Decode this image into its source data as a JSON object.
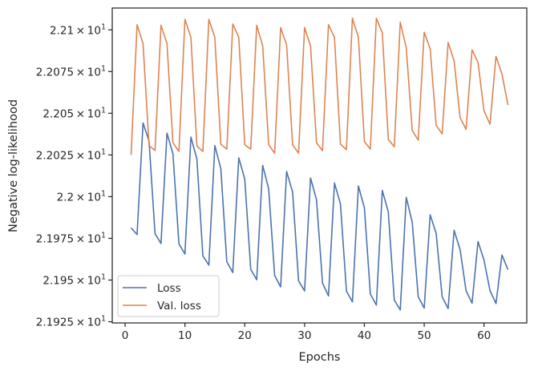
{
  "chart_data": {
    "type": "line",
    "xlabel": "Epochs",
    "ylabel": "Negative log-likelihood",
    "xlim": [
      -2.15,
      67.15
    ],
    "ylim": [
      21.9243,
      22.1131
    ],
    "x_ticks": [
      {
        "value": 0,
        "label": "0"
      },
      {
        "value": 10,
        "label": "10"
      },
      {
        "value": 20,
        "label": "20"
      },
      {
        "value": 30,
        "label": "30"
      },
      {
        "value": 40,
        "label": "40"
      },
      {
        "value": 50,
        "label": "50"
      },
      {
        "value": 60,
        "label": "60"
      }
    ],
    "y_ticks": [
      {
        "value": 21.925,
        "mantissa": "2.1925",
        "times": "×",
        "base": "10",
        "exp": "1"
      },
      {
        "value": 21.95,
        "mantissa": "2.195",
        "times": "×",
        "base": "10",
        "exp": "1"
      },
      {
        "value": 21.975,
        "mantissa": "2.1975",
        "times": "×",
        "base": "10",
        "exp": "1"
      },
      {
        "value": 22.0,
        "mantissa": "2.2",
        "times": "×",
        "base": "10",
        "exp": "1"
      },
      {
        "value": 22.025,
        "mantissa": "2.2025",
        "times": "×",
        "base": "10",
        "exp": "1"
      },
      {
        "value": 22.05,
        "mantissa": "2.205",
        "times": "×",
        "base": "10",
        "exp": "1"
      },
      {
        "value": 22.075,
        "mantissa": "2.2075",
        "times": "×",
        "base": "10",
        "exp": "1"
      },
      {
        "value": 22.1,
        "mantissa": "2.21",
        "times": "×",
        "base": "10",
        "exp": "1"
      }
    ],
    "legend": {
      "placement": "lower-left"
    },
    "series": [
      {
        "name": "Loss",
        "color": "#4c72b0",
        "x": [
          1,
          2,
          3,
          4,
          5,
          6,
          7,
          8,
          9,
          10,
          11,
          12,
          13,
          14,
          15,
          16,
          17,
          18,
          19,
          20,
          21,
          22,
          23,
          24,
          25,
          26,
          27,
          28,
          29,
          30,
          31,
          32,
          33,
          34,
          35,
          36,
          37,
          38,
          39,
          40,
          41,
          42,
          43,
          44,
          45,
          46,
          47,
          48,
          49,
          50,
          51,
          52,
          53,
          54,
          55,
          56,
          57,
          58,
          59,
          60,
          61,
          62,
          63,
          64
        ],
        "values": [
          21.9813,
          21.9773,
          22.0442,
          22.0333,
          21.9779,
          21.9719,
          22.0381,
          22.0256,
          21.9717,
          21.9656,
          22.0357,
          22.0226,
          21.9645,
          21.959,
          22.0306,
          22.0168,
          21.961,
          21.9545,
          22.0233,
          22.0106,
          21.9565,
          21.9502,
          22.0187,
          22.0047,
          21.9527,
          21.9459,
          22.0151,
          22.0028,
          21.9495,
          21.9435,
          22.0112,
          21.9981,
          21.9482,
          21.9405,
          22.0082,
          21.9956,
          21.9434,
          21.9369,
          22.0064,
          21.9934,
          21.9416,
          21.935,
          22.0037,
          21.9909,
          21.938,
          21.9321,
          21.9996,
          21.9847,
          21.94,
          21.9332,
          21.9891,
          21.978,
          21.94,
          21.9329,
          21.9798,
          21.9683,
          21.9436,
          21.9361,
          21.9731,
          21.9619,
          21.9437,
          21.9359,
          21.965,
          21.9563
        ]
      },
      {
        "name": "Val. loss",
        "color": "#dd8452",
        "x": [
          1,
          2,
          3,
          4,
          5,
          6,
          7,
          8,
          9,
          10,
          11,
          12,
          13,
          14,
          15,
          16,
          17,
          18,
          19,
          20,
          21,
          22,
          23,
          24,
          25,
          26,
          27,
          28,
          29,
          30,
          31,
          32,
          33,
          34,
          35,
          36,
          37,
          38,
          39,
          40,
          41,
          42,
          43,
          44,
          45,
          46,
          47,
          48,
          49,
          50,
          51,
          52,
          53,
          54,
          55,
          56,
          57,
          58,
          59,
          60,
          61,
          62,
          63,
          64
        ],
        "values": [
          22.025,
          22.1031,
          22.0917,
          22.0306,
          22.0277,
          22.1028,
          22.0917,
          22.0323,
          22.0271,
          22.1063,
          22.0955,
          22.0304,
          22.0271,
          22.1063,
          22.0955,
          22.0314,
          22.0285,
          22.1035,
          22.0955,
          22.0311,
          22.0285,
          22.1028,
          22.0903,
          22.0311,
          22.0261,
          22.1014,
          22.091,
          22.0311,
          22.0261,
          22.1014,
          22.0903,
          22.0323,
          22.0276,
          22.1031,
          22.0955,
          22.0314,
          22.0282,
          22.107,
          22.0955,
          22.0331,
          22.0285,
          22.107,
          22.0982,
          22.0344,
          22.0299,
          22.1046,
          22.0893,
          22.0397,
          22.0339,
          22.0986,
          22.0886,
          22.0428,
          22.0376,
          22.0924,
          22.0814,
          22.0474,
          22.0403,
          22.088,
          22.0804,
          22.0514,
          22.0434,
          22.0841,
          22.0735,
          22.055
        ]
      }
    ]
  }
}
